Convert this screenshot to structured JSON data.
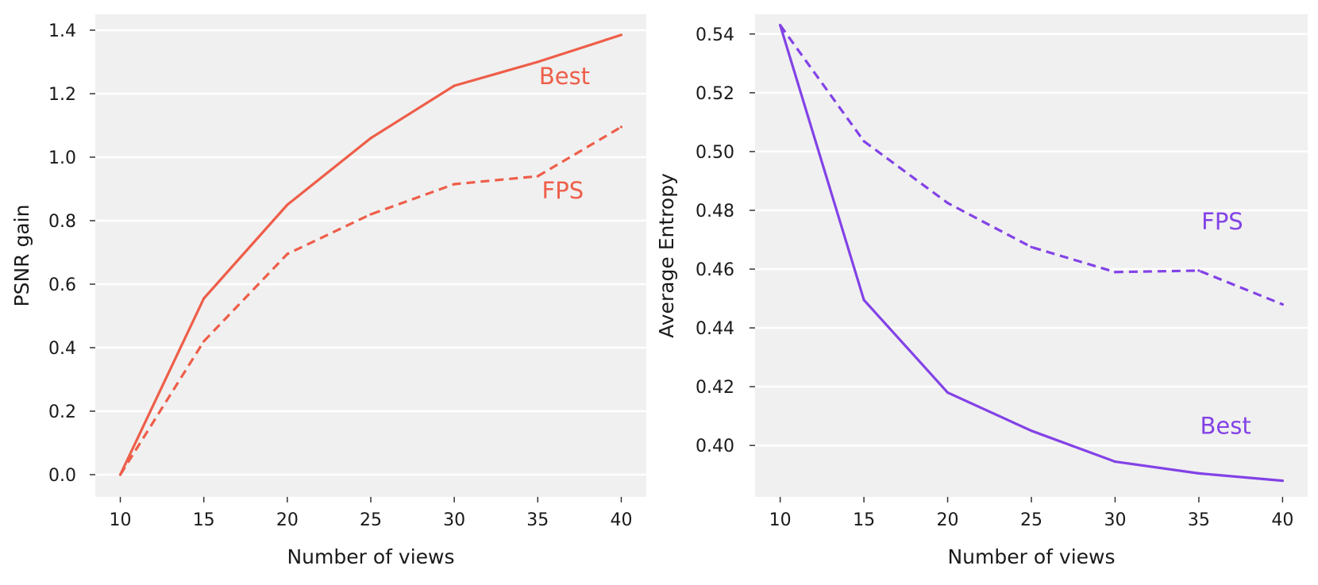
{
  "chart_data": [
    {
      "type": "line",
      "title": "",
      "xlabel": "Number of views",
      "ylabel": "PSNR gain",
      "color": "#ee5e49",
      "xlim": [
        8.5,
        41.5
      ],
      "ylim": [
        -0.07,
        1.45
      ],
      "xticks": [
        10,
        15,
        20,
        25,
        30,
        35,
        40
      ],
      "xtick_labels": [
        "10",
        "15",
        "20",
        "25",
        "30",
        "35",
        "40"
      ],
      "yticks": [
        0.0,
        0.2,
        0.4,
        0.6,
        0.8,
        1.0,
        1.2,
        1.4
      ],
      "ytick_labels": [
        "0.0",
        "0.2",
        "0.4",
        "0.6",
        "0.8",
        "1.0",
        "1.2",
        "1.4"
      ],
      "x": [
        10,
        15,
        20,
        25,
        30,
        35,
        40
      ],
      "series": [
        {
          "name": "Best",
          "style": "solid",
          "values": [
            0.0,
            0.555,
            0.85,
            1.06,
            1.225,
            1.3,
            1.385
          ]
        },
        {
          "name": "FPS",
          "style": "dashed",
          "values": [
            0.0,
            0.42,
            0.695,
            0.82,
            0.915,
            0.94,
            1.095
          ]
        }
      ],
      "annotations": [
        {
          "text": "Best",
          "x": 36.6,
          "y": 1.23
        },
        {
          "text": "FPS",
          "x": 36.5,
          "y": 0.87
        }
      ]
    },
    {
      "type": "line",
      "title": "",
      "xlabel": "Number of views",
      "ylabel": "Average Entropy",
      "color": "#8342e6",
      "xlim": [
        8.5,
        41.5
      ],
      "ylim": [
        0.3825,
        0.5467
      ],
      "xticks": [
        10,
        15,
        20,
        25,
        30,
        35,
        40
      ],
      "xtick_labels": [
        "10",
        "15",
        "20",
        "25",
        "30",
        "35",
        "40"
      ],
      "yticks": [
        0.4,
        0.42,
        0.44,
        0.46,
        0.48,
        0.5,
        0.52,
        0.54
      ],
      "ytick_labels": [
        "0.40",
        "0.42",
        "0.44",
        "0.46",
        "0.48",
        "0.50",
        "0.52",
        "0.54"
      ],
      "x": [
        10,
        15,
        20,
        25,
        30,
        35,
        40
      ],
      "series": [
        {
          "name": "Best",
          "style": "solid",
          "values": [
            0.543,
            0.4495,
            0.418,
            0.405,
            0.3945,
            0.3905,
            0.388
          ]
        },
        {
          "name": "FPS",
          "style": "dashed",
          "values": [
            0.543,
            0.5035,
            0.4825,
            0.4675,
            0.459,
            0.4595,
            0.448
          ]
        }
      ],
      "annotations": [
        {
          "text": "FPS",
          "x": 36.4,
          "y": 0.4735
        },
        {
          "text": "Best",
          "x": 36.6,
          "y": 0.404
        }
      ]
    }
  ]
}
